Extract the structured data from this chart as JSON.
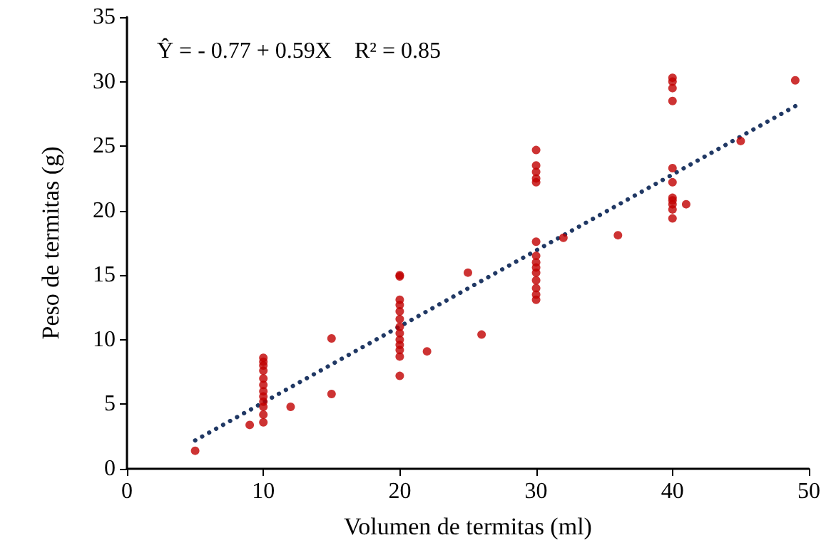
{
  "chart_data": {
    "type": "scatter",
    "xlabel": "Volumen de termitas (ml)",
    "ylabel": "Peso de termitas (g)",
    "annotations": [
      "Ŷ = - 0.77 + 0.59X    R² = 0.85"
    ],
    "xlim": [
      0,
      50
    ],
    "xticks": [
      0,
      10,
      20,
      30,
      40,
      50
    ],
    "ylim": [
      0,
      35
    ],
    "yticks": [
      0,
      5,
      10,
      15,
      20,
      25,
      30,
      35
    ],
    "grid": false,
    "series": [
      {
        "color": "#c00000",
        "marker": "circle",
        "x": [
          5,
          9,
          10,
          10,
          10,
          10,
          10,
          10,
          10,
          10,
          10,
          10,
          10,
          10,
          12,
          15,
          15,
          20,
          20,
          20,
          20,
          20,
          20,
          20,
          20,
          20,
          20,
          20,
          20,
          20,
          22,
          25,
          26,
          30,
          30,
          30,
          30,
          30,
          30,
          30,
          30,
          30,
          30,
          30,
          30,
          30,
          30,
          32,
          36,
          40,
          40,
          40,
          40,
          40,
          40,
          40,
          40,
          40,
          40,
          40,
          41,
          45,
          49
        ],
        "values": [
          1.4,
          3.4,
          3.6,
          4.2,
          4.8,
          5.2,
          5.6,
          6.0,
          6.5,
          7.0,
          7.6,
          8.0,
          8.3,
          8.6,
          4.8,
          5.8,
          10.1,
          7.2,
          8.7,
          9.2,
          9.6,
          10.0,
          10.5,
          11.0,
          11.6,
          12.2,
          12.7,
          13.1,
          14.9,
          15.0,
          9.1,
          15.2,
          10.4,
          13.1,
          13.5,
          14.0,
          14.6,
          15.2,
          15.6,
          16.0,
          16.5,
          17.6,
          22.2,
          22.5,
          23.0,
          23.5,
          24.7,
          17.9,
          18.1,
          19.4,
          20.1,
          20.5,
          20.8,
          21.0,
          22.2,
          23.3,
          28.5,
          29.5,
          30.0,
          30.3,
          20.5,
          25.4,
          30.1
        ]
      },
      {
        "type": "line",
        "color": "#203864",
        "line_style": "dotted",
        "marker": "none",
        "x": [
          5,
          49
        ],
        "values": [
          2.2,
          28.1
        ]
      }
    ]
  }
}
